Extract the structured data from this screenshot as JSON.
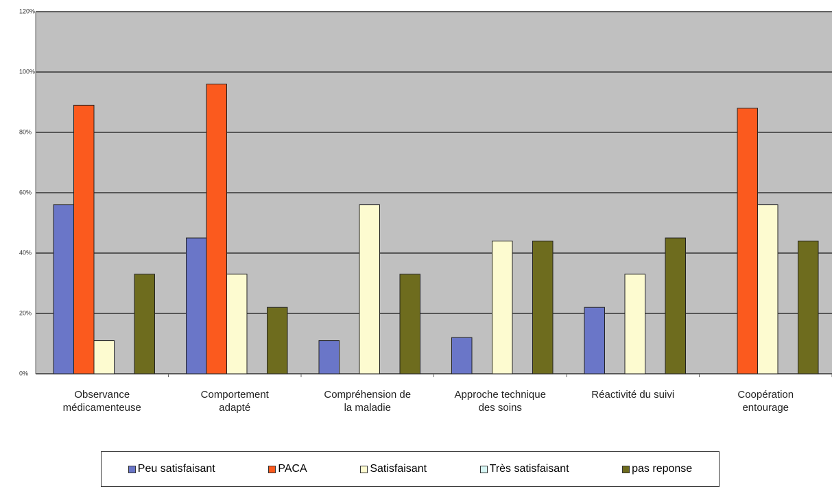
{
  "chart_data": {
    "type": "bar",
    "categories": [
      "Observance\nmédicamenteuse",
      "Comportement\nadapté",
      "Compréhension de\nla maladie",
      "Approche technique\ndes soins",
      "Réactivité du suivi",
      "Coopération\nentourage"
    ],
    "series": [
      {
        "name": "Peu satisfaisant",
        "color": "#6a76c8",
        "values": [
          56,
          45,
          11,
          12,
          22,
          0
        ]
      },
      {
        "name": "PACA",
        "color": "#fb5a1e",
        "values": [
          89,
          96,
          0,
          0,
          0,
          88
        ]
      },
      {
        "name": "Satisfaisant",
        "color": "#fdfbd0",
        "values": [
          11,
          33,
          56,
          44,
          33,
          56
        ]
      },
      {
        "name": "Très satisfaisant",
        "color": "#d6f6f4",
        "values": [
          0,
          0,
          0,
          0,
          0,
          0
        ]
      },
      {
        "name": "pas reponse",
        "color": "#6e6c1e",
        "values": [
          33,
          22,
          33,
          44,
          45,
          44
        ]
      }
    ],
    "ylim": [
      0,
      120
    ],
    "yticks": [
      {
        "value": 0,
        "label": "0%"
      },
      {
        "value": 20,
        "label": "20%"
      },
      {
        "value": 40,
        "label": "40%"
      },
      {
        "value": 60,
        "label": "60%"
      },
      {
        "value": 80,
        "label": "80%"
      },
      {
        "value": 100,
        "label": "100%"
      },
      {
        "value": 120,
        "label": "120%"
      }
    ],
    "grid": true,
    "legend": "bottom"
  }
}
